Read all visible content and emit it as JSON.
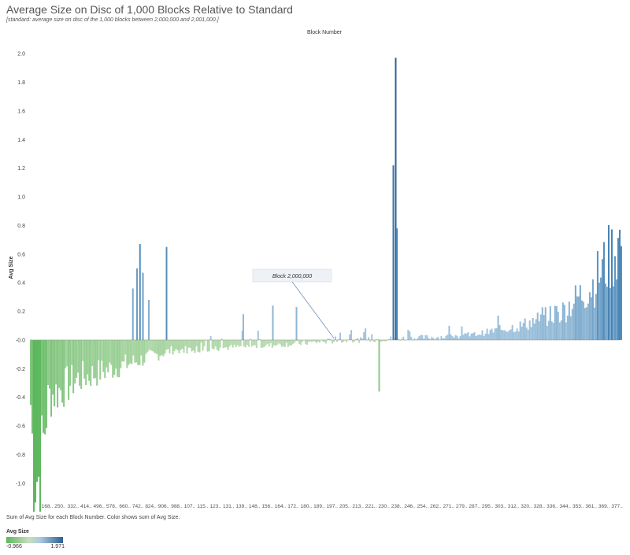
{
  "header": {
    "title": "Average Size on Disc of 1,000 Blocks Relative to Standard",
    "subtitle": "[standard: average size on disc of the 1,000 blocks between 2,000,000 and 2,001,000.]"
  },
  "footer": {
    "note": "Sum of Avg Size for each Block Number.  Color shows sum of Avg Size."
  },
  "legend": {
    "title": "Avg Size",
    "min_label": "-0.966",
    "max_label": "1.971",
    "colors": [
      "#5cb85c",
      "#c6dfbd",
      "#a9c9e0",
      "#2e5f8f"
    ]
  },
  "chart_data": {
    "type": "bar",
    "title": "Average Size on Disc of 1,000 Blocks Relative to Standard",
    "xlabel": "Block Number",
    "ylabel": "Avg Size",
    "ylim": [
      -1.1,
      2.1
    ],
    "yticks": [
      "2.0",
      "1.8",
      "1.6",
      "1.4",
      "1.2",
      "1.0",
      "0.8",
      "0.6",
      "0.4",
      "0.2",
      "-0.0",
      "-0.2",
      "-0.4",
      "-0.6",
      "-0.8",
      "-1.0"
    ],
    "ytick_values": [
      2.0,
      1.8,
      1.6,
      1.4,
      1.2,
      1.0,
      0.8,
      0.6,
      0.4,
      0.2,
      0.0,
      -0.2,
      -0.4,
      -0.6,
      -0.8,
      -1.0
    ],
    "xticks": [
      "168..",
      "250..",
      "332..",
      "414..",
      "496..",
      "578..",
      "660..",
      "742..",
      "824..",
      "906..",
      "988..",
      "107..",
      "115..",
      "123..",
      "131..",
      "139..",
      "148..",
      "156..",
      "164..",
      "172..",
      "180..",
      "189..",
      "197..",
      "205..",
      "213..",
      "221..",
      "230..",
      "238..",
      "246..",
      "254..",
      "262..",
      "271..",
      "279..",
      "287..",
      "295..",
      "303..",
      "312..",
      "320..",
      "328..",
      "336..",
      "344..",
      "353..",
      "361..",
      "369..",
      "377.."
    ],
    "grid": false,
    "annotation": {
      "text": "Block 2,000,000",
      "x_fraction": 0.515,
      "value": 0.0
    },
    "color_range": {
      "min": -0.966,
      "max": 1.971
    },
    "key_points": [
      {
        "x": 0.0,
        "y": -0.45
      },
      {
        "x": 0.005,
        "y": -0.9
      },
      {
        "x": 0.014,
        "y": -0.966
      },
      {
        "x": 0.03,
        "y": -0.4
      },
      {
        "x": 0.08,
        "y": -0.27
      },
      {
        "x": 0.17,
        "y": -0.16
      },
      {
        "x": 0.24,
        "y": -0.07
      },
      {
        "x": 0.4,
        "y": -0.04
      },
      {
        "x": 0.5,
        "y": -0.01
      },
      {
        "x": 0.62,
        "y": 0.01
      },
      {
        "x": 0.74,
        "y": 0.03
      },
      {
        "x": 0.83,
        "y": 0.1
      },
      {
        "x": 0.9,
        "y": 0.2
      },
      {
        "x": 0.95,
        "y": 0.38
      },
      {
        "x": 1.0,
        "y": 0.7
      }
    ],
    "spikes": [
      {
        "x": 0.173,
        "y": 0.36
      },
      {
        "x": 0.18,
        "y": 0.5
      },
      {
        "x": 0.185,
        "y": 0.67
      },
      {
        "x": 0.19,
        "y": 0.47
      },
      {
        "x": 0.2,
        "y": 0.28
      },
      {
        "x": 0.23,
        "y": 0.65
      },
      {
        "x": 0.36,
        "y": 0.18
      },
      {
        "x": 0.41,
        "y": 0.24
      },
      {
        "x": 0.45,
        "y": 0.23
      },
      {
        "x": 0.59,
        "y": -0.36
      },
      {
        "x": 0.614,
        "y": 1.22
      },
      {
        "x": 0.618,
        "y": 1.971
      },
      {
        "x": 0.62,
        "y": 0.78
      }
    ]
  }
}
